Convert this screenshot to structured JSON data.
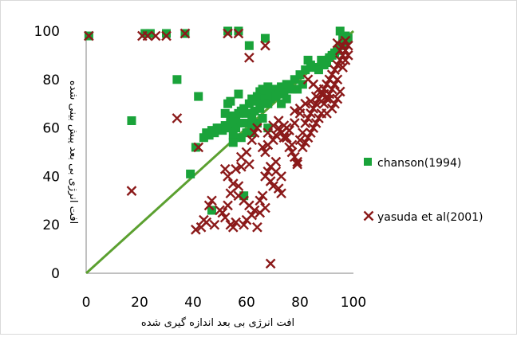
{
  "chart_data": {
    "type": "scatter",
    "xlabel": "افت انرژی بی بعد اندازه گیری شده",
    "ylabel": "افت انرژی بی بعد پیش بینی شده",
    "xlim": [
      0,
      100
    ],
    "ylim": [
      0,
      100
    ],
    "x_ticks": [
      "0",
      "20",
      "40",
      "60",
      "80",
      "100"
    ],
    "y_ticks": [
      "0",
      "20",
      "40",
      "60",
      "80",
      "100"
    ],
    "grid": false,
    "legend_position": "right",
    "reference_line": {
      "x": [
        0,
        100
      ],
      "y": [
        0,
        100
      ],
      "color": "#5ba030"
    },
    "series": [
      {
        "name": "chanson(1994)",
        "marker": "square",
        "color": "#1aa33a",
        "points": [
          [
            1,
            98
          ],
          [
            22,
            99
          ],
          [
            24,
            99
          ],
          [
            30,
            99
          ],
          [
            37,
            99
          ],
          [
            53,
            100
          ],
          [
            57,
            100
          ],
          [
            67,
            97
          ],
          [
            61,
            94
          ],
          [
            95,
            100
          ],
          [
            17,
            63
          ],
          [
            34,
            80
          ],
          [
            42,
            73
          ],
          [
            41,
            52
          ],
          [
            39,
            41
          ],
          [
            47,
            26
          ],
          [
            59,
            32
          ],
          [
            44,
            56
          ],
          [
            45,
            58
          ],
          [
            46,
            57
          ],
          [
            47,
            59
          ],
          [
            48,
            58
          ],
          [
            50,
            60
          ],
          [
            51,
            59
          ],
          [
            52,
            61
          ],
          [
            53,
            60
          ],
          [
            54,
            64
          ],
          [
            55,
            65
          ],
          [
            56,
            63
          ],
          [
            57,
            66
          ],
          [
            58,
            67
          ],
          [
            59,
            68
          ],
          [
            60,
            66
          ],
          [
            61,
            70
          ],
          [
            62,
            72
          ],
          [
            63,
            71
          ],
          [
            64,
            73
          ],
          [
            65,
            75
          ],
          [
            66,
            76
          ],
          [
            67,
            74
          ],
          [
            68,
            77
          ],
          [
            69,
            72
          ],
          [
            70,
            75
          ],
          [
            71,
            76
          ],
          [
            72,
            74
          ],
          [
            73,
            77
          ],
          [
            74,
            75
          ],
          [
            75,
            78
          ],
          [
            76,
            77
          ],
          [
            77,
            76
          ],
          [
            55,
            57
          ],
          [
            56,
            60
          ],
          [
            58,
            62
          ],
          [
            60,
            62
          ],
          [
            62,
            64
          ],
          [
            63,
            67
          ],
          [
            65,
            68
          ],
          [
            66,
            70
          ],
          [
            67,
            72
          ],
          [
            68,
            70
          ],
          [
            69,
            74
          ],
          [
            70,
            73
          ],
          [
            71,
            73
          ],
          [
            52,
            66
          ],
          [
            53,
            70
          ],
          [
            54,
            71
          ],
          [
            57,
            74
          ],
          [
            62,
            61
          ],
          [
            64,
            62
          ],
          [
            66,
            64
          ],
          [
            68,
            60
          ],
          [
            49,
            60
          ],
          [
            54,
            62
          ],
          [
            60,
            58
          ],
          [
            62,
            58
          ],
          [
            58,
            56
          ],
          [
            55,
            54
          ],
          [
            78,
            80
          ],
          [
            80,
            82
          ],
          [
            82,
            84
          ],
          [
            84,
            86
          ],
          [
            86,
            85
          ],
          [
            88,
            88
          ],
          [
            90,
            87
          ],
          [
            92,
            90
          ],
          [
            93,
            91
          ],
          [
            94,
            92
          ],
          [
            95,
            94
          ],
          [
            96,
            95
          ],
          [
            97,
            96
          ],
          [
            96,
            97
          ],
          [
            97,
            98
          ],
          [
            98,
            97
          ],
          [
            83,
            88
          ],
          [
            85,
            85
          ],
          [
            87,
            84
          ],
          [
            89,
            86
          ],
          [
            91,
            89
          ],
          [
            79,
            76
          ],
          [
            81,
            78
          ],
          [
            75,
            72
          ],
          [
            73,
            70
          ]
        ]
      },
      {
        "name": "yasuda et al(2001)",
        "marker": "x",
        "color": "#8b1a1a",
        "points": [
          [
            1,
            98
          ],
          [
            21,
            98
          ],
          [
            23,
            98
          ],
          [
            26,
            98
          ],
          [
            30,
            98
          ],
          [
            37,
            99
          ],
          [
            53,
            99
          ],
          [
            57,
            99
          ],
          [
            61,
            89
          ],
          [
            67,
            94
          ],
          [
            17,
            34
          ],
          [
            34,
            64
          ],
          [
            42,
            52
          ],
          [
            69,
            4
          ],
          [
            41,
            18
          ],
          [
            43,
            19
          ],
          [
            44,
            22
          ],
          [
            45,
            21
          ],
          [
            46,
            28
          ],
          [
            47,
            30
          ],
          [
            48,
            20
          ],
          [
            50,
            26
          ],
          [
            51,
            25
          ],
          [
            52,
            43
          ],
          [
            53,
            40
          ],
          [
            54,
            20
          ],
          [
            55,
            19
          ],
          [
            56,
            21
          ],
          [
            57,
            36
          ],
          [
            58,
            44
          ],
          [
            59,
            20
          ],
          [
            60,
            22
          ],
          [
            61,
            45
          ],
          [
            62,
            24
          ],
          [
            63,
            26
          ],
          [
            64,
            19
          ],
          [
            65,
            30
          ],
          [
            66,
            32
          ],
          [
            67,
            40
          ],
          [
            68,
            42
          ],
          [
            69,
            38
          ],
          [
            70,
            36
          ],
          [
            71,
            46
          ],
          [
            72,
            35
          ],
          [
            73,
            33
          ],
          [
            74,
            56
          ],
          [
            75,
            60
          ],
          [
            76,
            52
          ],
          [
            77,
            50
          ],
          [
            78,
            48
          ],
          [
            79,
            46
          ],
          [
            80,
            55
          ],
          [
            81,
            58
          ],
          [
            82,
            62
          ],
          [
            83,
            64
          ],
          [
            84,
            66
          ],
          [
            85,
            68
          ],
          [
            86,
            70
          ],
          [
            87,
            72
          ],
          [
            88,
            74
          ],
          [
            89,
            76
          ],
          [
            90,
            78
          ],
          [
            91,
            80
          ],
          [
            92,
            82
          ],
          [
            93,
            84
          ],
          [
            94,
            86
          ],
          [
            95,
            88
          ],
          [
            96,
            90
          ],
          [
            97,
            92
          ],
          [
            98,
            94
          ],
          [
            95,
            92
          ],
          [
            96,
            94
          ],
          [
            97,
            96
          ],
          [
            94,
            80
          ],
          [
            93,
            78
          ],
          [
            92,
            76
          ],
          [
            91,
            74
          ],
          [
            90,
            72
          ],
          [
            89,
            70
          ],
          [
            88,
            66
          ],
          [
            87,
            64
          ],
          [
            86,
            62
          ],
          [
            85,
            60
          ],
          [
            84,
            58
          ],
          [
            83,
            56
          ],
          [
            82,
            54
          ],
          [
            81,
            52
          ],
          [
            79,
            45
          ],
          [
            77,
            53
          ],
          [
            75,
            56
          ],
          [
            73,
            58
          ],
          [
            72,
            60
          ],
          [
            71,
            57
          ],
          [
            70,
            55
          ],
          [
            68,
            53
          ],
          [
            67,
            50
          ],
          [
            66,
            52
          ],
          [
            64,
            60
          ],
          [
            63,
            58
          ],
          [
            62,
            55
          ],
          [
            60,
            50
          ],
          [
            58,
            48
          ],
          [
            56,
            43
          ],
          [
            55,
            37
          ],
          [
            54,
            33
          ],
          [
            53,
            28
          ],
          [
            52,
            23
          ],
          [
            57,
            32
          ],
          [
            59,
            30
          ],
          [
            61,
            28
          ],
          [
            65,
            25
          ],
          [
            67,
            27
          ],
          [
            69,
            44
          ],
          [
            71,
            42
          ],
          [
            73,
            40
          ],
          [
            83,
            80
          ],
          [
            85,
            78
          ],
          [
            87,
            76
          ],
          [
            89,
            74
          ],
          [
            91,
            72
          ],
          [
            93,
            70
          ],
          [
            95,
            75
          ],
          [
            96,
            85
          ],
          [
            97,
            88
          ],
          [
            98,
            90
          ],
          [
            94,
            95
          ],
          [
            80,
            66
          ],
          [
            78,
            62
          ],
          [
            76,
            59
          ],
          [
            74,
            61
          ],
          [
            72,
            63
          ],
          [
            70,
            61
          ],
          [
            68,
            58
          ],
          [
            86,
            73
          ],
          [
            88,
            71
          ],
          [
            84,
            71
          ],
          [
            82,
            70
          ],
          [
            80,
            68
          ],
          [
            78,
            67
          ],
          [
            90,
            66
          ],
          [
            92,
            68
          ],
          [
            94,
            72
          ]
        ]
      }
    ]
  }
}
